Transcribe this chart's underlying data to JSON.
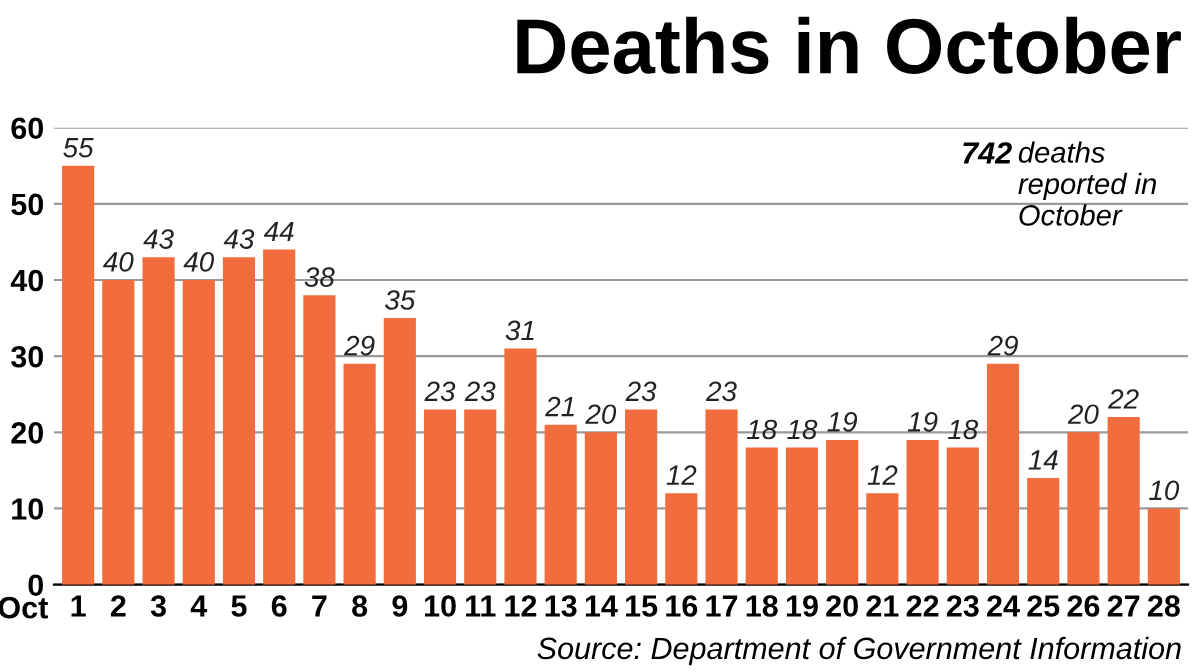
{
  "chart_data": {
    "type": "bar",
    "title": "Deaths in October",
    "xlabel": "Oct",
    "categories": [
      "1",
      "2",
      "3",
      "4",
      "5",
      "6",
      "7",
      "8",
      "9",
      "10",
      "11",
      "12",
      "13",
      "14",
      "15",
      "16",
      "17",
      "18",
      "19",
      "20",
      "21",
      "22",
      "23",
      "24",
      "25",
      "26",
      "27",
      "28"
    ],
    "values": [
      55,
      40,
      43,
      40,
      43,
      44,
      38,
      29,
      35,
      23,
      23,
      31,
      21,
      20,
      23,
      12,
      23,
      18,
      18,
      19,
      12,
      19,
      18,
      29,
      14,
      20,
      22,
      10
    ],
    "color": "#f26d3d",
    "data_labels": true,
    "ylim": [
      0,
      60
    ],
    "yticks": [
      0,
      10,
      20,
      30,
      40,
      50,
      60
    ],
    "grid": "y",
    "legend": false,
    "annotations": [
      "742 deaths reported in October",
      "Source: Department of Government Information"
    ]
  }
}
